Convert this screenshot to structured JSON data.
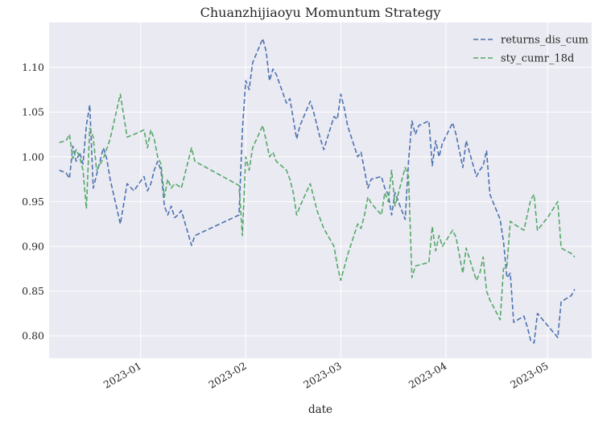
{
  "chart_data": {
    "type": "line",
    "title": "Chuanzhijiaoyu Momuntum Strategy",
    "xlabel": "date",
    "ylabel": "",
    "x_range": [
      "2022-12-05",
      "2023-05-14"
    ],
    "ylim": [
      0.775,
      1.15
    ],
    "yticks": [
      0.8,
      0.85,
      0.9,
      0.95,
      1.0,
      1.05,
      1.1
    ],
    "ytick_labels": [
      "0.80",
      "0.85",
      "0.90",
      "0.95",
      "1.00",
      "1.05",
      "1.10"
    ],
    "xticks": [
      "2023-01-01",
      "2023-02-01",
      "2023-03-01",
      "2023-04-01",
      "2023-05-01"
    ],
    "xtick_labels": [
      "2023-01",
      "2023-02",
      "2023-03",
      "2023-04",
      "2023-05"
    ],
    "grid": true,
    "legend_position": "top-right",
    "style": {
      "background": "#eaeaf2",
      "grid": "#ffffff",
      "line_style": "dashed"
    },
    "series": [
      {
        "name": "returns_dis_cum",
        "color": "#4c72b0",
        "points": [
          [
            "2022-12-08",
            0.985
          ],
          [
            "2022-12-10",
            0.982
          ],
          [
            "2022-12-11",
            0.976
          ],
          [
            "2022-12-12",
            1.012
          ],
          [
            "2022-12-13",
            0.995
          ],
          [
            "2022-12-14",
            1.005
          ],
          [
            "2022-12-15",
            0.992
          ],
          [
            "2022-12-16",
            1.035
          ],
          [
            "2022-12-17",
            1.058
          ],
          [
            "2022-12-18",
            0.965
          ],
          [
            "2022-12-19",
            0.98
          ],
          [
            "2022-12-21",
            1.01
          ],
          [
            "2022-12-22",
            0.998
          ],
          [
            "2022-12-23",
            0.975
          ],
          [
            "2022-12-26",
            0.925
          ],
          [
            "2022-12-28",
            0.97
          ],
          [
            "2022-12-30",
            0.962
          ],
          [
            "2023-01-02",
            0.978
          ],
          [
            "2023-01-03",
            0.962
          ],
          [
            "2023-01-04",
            0.97
          ],
          [
            "2023-01-05",
            0.985
          ],
          [
            "2023-01-06",
            0.995
          ],
          [
            "2023-01-07",
            0.985
          ],
          [
            "2023-01-08",
            0.945
          ],
          [
            "2023-01-09",
            0.935
          ],
          [
            "2023-01-10",
            0.945
          ],
          [
            "2023-01-11",
            0.932
          ],
          [
            "2023-01-12",
            0.935
          ],
          [
            "2023-01-13",
            0.94
          ],
          [
            "2023-01-16",
            0.901
          ],
          [
            "2023-01-17",
            0.912
          ],
          [
            "2023-01-30",
            0.935
          ],
          [
            "2023-01-31",
            1.03
          ],
          [
            "2023-02-01",
            1.085
          ],
          [
            "2023-02-02",
            1.075
          ],
          [
            "2023-02-03",
            1.105
          ],
          [
            "2023-02-06",
            1.132
          ],
          [
            "2023-02-07",
            1.118
          ],
          [
            "2023-02-08",
            1.085
          ],
          [
            "2023-02-09",
            1.098
          ],
          [
            "2023-02-10",
            1.092
          ],
          [
            "2023-02-13",
            1.06
          ],
          [
            "2023-02-14",
            1.065
          ],
          [
            "2023-02-16",
            1.02
          ],
          [
            "2023-02-17",
            1.035
          ],
          [
            "2023-02-20",
            1.062
          ],
          [
            "2023-02-21",
            1.05
          ],
          [
            "2023-02-22",
            1.035
          ],
          [
            "2023-02-23",
            1.02
          ],
          [
            "2023-02-24",
            1.008
          ],
          [
            "2023-02-27",
            1.045
          ],
          [
            "2023-02-28",
            1.042
          ],
          [
            "2023-03-01",
            1.07
          ],
          [
            "2023-03-02",
            1.055
          ],
          [
            "2023-03-03",
            1.035
          ],
          [
            "2023-03-06",
            1.0
          ],
          [
            "2023-03-07",
            1.005
          ],
          [
            "2023-03-08",
            0.985
          ],
          [
            "2023-03-09",
            0.965
          ],
          [
            "2023-03-10",
            0.975
          ],
          [
            "2023-03-13",
            0.978
          ],
          [
            "2023-03-14",
            0.965
          ],
          [
            "2023-03-15",
            0.958
          ],
          [
            "2023-03-16",
            0.935
          ],
          [
            "2023-03-17",
            0.96
          ],
          [
            "2023-03-20",
            0.93
          ],
          [
            "2023-03-21",
            0.995
          ],
          [
            "2023-03-22",
            1.04
          ],
          [
            "2023-03-23",
            1.025
          ],
          [
            "2023-03-24",
            1.035
          ],
          [
            "2023-03-27",
            1.04
          ],
          [
            "2023-03-28",
            0.99
          ],
          [
            "2023-03-29",
            1.018
          ],
          [
            "2023-03-30",
            1.0
          ],
          [
            "2023-03-31",
            1.015
          ],
          [
            "2023-04-03",
            1.038
          ],
          [
            "2023-04-04",
            1.025
          ],
          [
            "2023-04-06",
            0.988
          ],
          [
            "2023-04-07",
            1.018
          ],
          [
            "2023-04-10",
            0.978
          ],
          [
            "2023-04-11",
            0.985
          ],
          [
            "2023-04-12",
            0.99
          ],
          [
            "2023-04-13",
            1.007
          ],
          [
            "2023-04-14",
            0.958
          ],
          [
            "2023-04-17",
            0.93
          ],
          [
            "2023-04-18",
            0.905
          ],
          [
            "2023-04-19",
            0.865
          ],
          [
            "2023-04-20",
            0.87
          ],
          [
            "2023-04-21",
            0.815
          ],
          [
            "2023-04-24",
            0.822
          ],
          [
            "2023-04-25",
            0.81
          ],
          [
            "2023-04-26",
            0.795
          ],
          [
            "2023-04-27",
            0.792
          ],
          [
            "2023-04-28",
            0.825
          ],
          [
            "2023-05-04",
            0.798
          ],
          [
            "2023-05-05",
            0.838
          ],
          [
            "2023-05-08",
            0.845
          ],
          [
            "2023-05-09",
            0.852
          ]
        ]
      },
      {
        "name": "sty_cumr_18d",
        "color": "#55a868",
        "points": [
          [
            "2022-12-08",
            1.016
          ],
          [
            "2022-12-10",
            1.018
          ],
          [
            "2022-12-11",
            1.025
          ],
          [
            "2022-12-12",
            0.998
          ],
          [
            "2022-12-13",
            1.008
          ],
          [
            "2022-12-14",
            1.0
          ],
          [
            "2022-12-15",
            0.985
          ],
          [
            "2022-12-16",
            0.942
          ],
          [
            "2022-12-17",
            1.032
          ],
          [
            "2022-12-18",
            1.022
          ],
          [
            "2022-12-19",
            0.985
          ],
          [
            "2022-12-21",
            0.998
          ],
          [
            "2022-12-23",
            1.02
          ],
          [
            "2022-12-26",
            1.07
          ],
          [
            "2022-12-28",
            1.022
          ],
          [
            "2022-12-30",
            1.025
          ],
          [
            "2023-01-02",
            1.03
          ],
          [
            "2023-01-03",
            1.01
          ],
          [
            "2023-01-04",
            1.03
          ],
          [
            "2023-01-05",
            1.02
          ],
          [
            "2023-01-06",
            1.0
          ],
          [
            "2023-01-07",
            0.992
          ],
          [
            "2023-01-08",
            0.955
          ],
          [
            "2023-01-09",
            0.975
          ],
          [
            "2023-01-10",
            0.965
          ],
          [
            "2023-01-11",
            0.97
          ],
          [
            "2023-01-12",
            0.968
          ],
          [
            "2023-01-13",
            0.965
          ],
          [
            "2023-01-16",
            1.01
          ],
          [
            "2023-01-17",
            0.995
          ],
          [
            "2023-01-30",
            0.968
          ],
          [
            "2023-01-31",
            0.912
          ],
          [
            "2023-02-01",
            1.0
          ],
          [
            "2023-02-02",
            0.985
          ],
          [
            "2023-02-03",
            1.01
          ],
          [
            "2023-02-06",
            1.035
          ],
          [
            "2023-02-07",
            1.018
          ],
          [
            "2023-02-08",
            1.0
          ],
          [
            "2023-02-09",
            1.005
          ],
          [
            "2023-02-10",
            0.995
          ],
          [
            "2023-02-13",
            0.985
          ],
          [
            "2023-02-14",
            0.975
          ],
          [
            "2023-02-15",
            0.96
          ],
          [
            "2023-02-16",
            0.935
          ],
          [
            "2023-02-17",
            0.945
          ],
          [
            "2023-02-20",
            0.97
          ],
          [
            "2023-02-21",
            0.955
          ],
          [
            "2023-02-22",
            0.94
          ],
          [
            "2023-02-24",
            0.92
          ],
          [
            "2023-02-27",
            0.9
          ],
          [
            "2023-02-28",
            0.878
          ],
          [
            "2023-03-01",
            0.862
          ],
          [
            "2023-03-03",
            0.89
          ],
          [
            "2023-03-06",
            0.925
          ],
          [
            "2023-03-07",
            0.92
          ],
          [
            "2023-03-08",
            0.935
          ],
          [
            "2023-03-09",
            0.955
          ],
          [
            "2023-03-10",
            0.948
          ],
          [
            "2023-03-13",
            0.935
          ],
          [
            "2023-03-14",
            0.96
          ],
          [
            "2023-03-15",
            0.95
          ],
          [
            "2023-03-16",
            0.985
          ],
          [
            "2023-03-17",
            0.945
          ],
          [
            "2023-03-20",
            0.988
          ],
          [
            "2023-03-21",
            0.978
          ],
          [
            "2023-03-22",
            0.865
          ],
          [
            "2023-03-23",
            0.878
          ],
          [
            "2023-03-27",
            0.882
          ],
          [
            "2023-03-28",
            0.922
          ],
          [
            "2023-03-29",
            0.895
          ],
          [
            "2023-03-30",
            0.912
          ],
          [
            "2023-03-31",
            0.9
          ],
          [
            "2023-04-03",
            0.918
          ],
          [
            "2023-04-04",
            0.91
          ],
          [
            "2023-04-06",
            0.87
          ],
          [
            "2023-04-07",
            0.898
          ],
          [
            "2023-04-10",
            0.862
          ],
          [
            "2023-04-11",
            0.87
          ],
          [
            "2023-04-12",
            0.888
          ],
          [
            "2023-04-13",
            0.85
          ],
          [
            "2023-04-14",
            0.84
          ],
          [
            "2023-04-17",
            0.818
          ],
          [
            "2023-04-18",
            0.875
          ],
          [
            "2023-04-19",
            0.878
          ],
          [
            "2023-04-20",
            0.928
          ],
          [
            "2023-04-21",
            0.925
          ],
          [
            "2023-04-24",
            0.918
          ],
          [
            "2023-04-26",
            0.952
          ],
          [
            "2023-04-27",
            0.958
          ],
          [
            "2023-04-28",
            0.918
          ],
          [
            "2023-05-01",
            0.932
          ],
          [
            "2023-05-04",
            0.95
          ],
          [
            "2023-05-05",
            0.898
          ],
          [
            "2023-05-08",
            0.892
          ],
          [
            "2023-05-09",
            0.888
          ]
        ]
      }
    ]
  }
}
